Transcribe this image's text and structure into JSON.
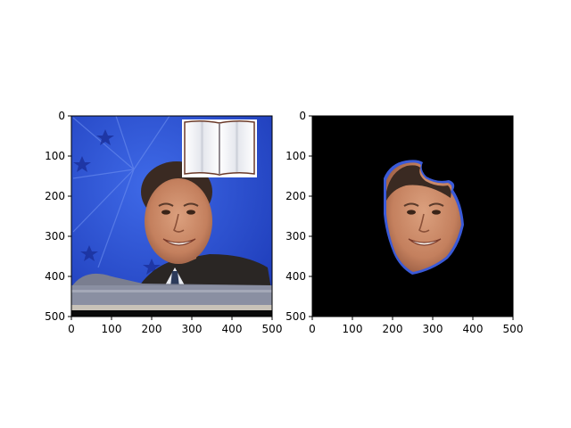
{
  "figure": {
    "panels": [
      {
        "name": "original-image-panel",
        "content": "photo",
        "xlim": [
          0,
          500
        ],
        "ylim": [
          0,
          500
        ],
        "y_inverted": true,
        "x_ticks": [
          "0",
          "100",
          "200",
          "300",
          "400",
          "500"
        ],
        "y_ticks": [
          "0",
          "100",
          "200",
          "300",
          "400",
          "500"
        ]
      },
      {
        "name": "masked-face-panel",
        "content": "masked-photo",
        "xlim": [
          0,
          500
        ],
        "ylim": [
          0,
          500
        ],
        "y_inverted": true,
        "x_ticks": [
          "0",
          "100",
          "200",
          "300",
          "400",
          "500"
        ],
        "y_ticks": [
          "0",
          "100",
          "200",
          "300",
          "400",
          "500"
        ]
      }
    ],
    "colors": {
      "background_blue": "#2a4fd6",
      "mask_background": "#000000",
      "skin": "#c98a6a",
      "hair": "#3a2a22",
      "jacket": "#2a2624"
    }
  }
}
